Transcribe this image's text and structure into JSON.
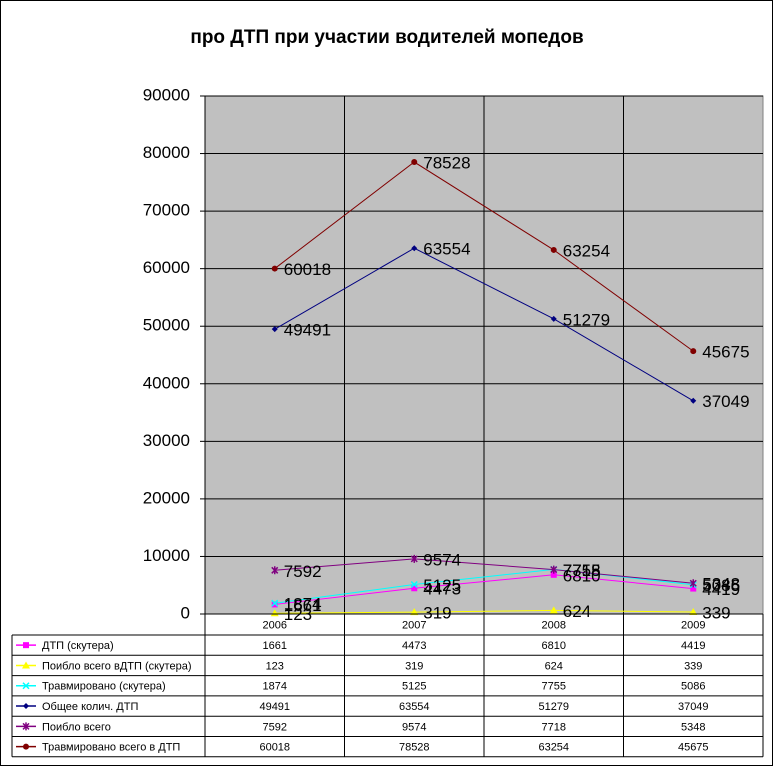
{
  "chart_data": {
    "type": "line",
    "title": "про ДТП при участии водителей мопедов",
    "categories": [
      "2006",
      "2007",
      "2008",
      "2009"
    ],
    "series": [
      {
        "name": "ДТП (скутера)",
        "color": "#ff00ff",
        "marker": "square",
        "values": [
          1661,
          4473,
          6810,
          4419
        ]
      },
      {
        "name": "Поибло всего вДТП (скутера)",
        "color": "#ffff00",
        "marker": "triangle",
        "values": [
          123,
          319,
          624,
          339
        ]
      },
      {
        "name": "Травмировано (скутера)",
        "color": "#00ffff",
        "marker": "cross",
        "values": [
          1874,
          5125,
          7755,
          5086
        ]
      },
      {
        "name": "Общее колич. ДТП",
        "color": "#000080",
        "marker": "diamond",
        "values": [
          49491,
          63554,
          51279,
          37049
        ]
      },
      {
        "name": "Поибло всего",
        "color": "#800080",
        "marker": "star",
        "values": [
          7592,
          9574,
          7718,
          5348
        ]
      },
      {
        "name": "Травмировано всего в ДТП",
        "color": "#800000",
        "marker": "circle",
        "values": [
          60018,
          78528,
          63254,
          45675
        ]
      }
    ],
    "ylim": [
      0,
      90000
    ],
    "yticks": [
      0,
      10000,
      20000,
      30000,
      40000,
      50000,
      60000,
      70000,
      80000,
      90000
    ],
    "grid": true,
    "plot_background": "#c0c0c0",
    "data_table": true
  }
}
